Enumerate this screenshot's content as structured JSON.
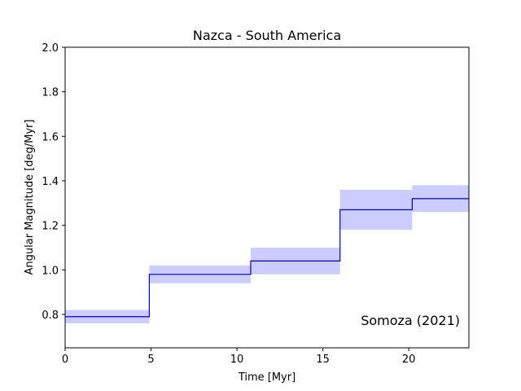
{
  "chart_data": {
    "type": "line",
    "step": true,
    "title": "Nazca - South America",
    "xlabel": "Time [Myr]",
    "ylabel": "Angular Magnitude [deg/Myr]",
    "annotation": "Somoza (2021)",
    "xlim": [
      0,
      23.5
    ],
    "ylim": [
      0.65,
      2.0
    ],
    "xticks": [
      0,
      5,
      10,
      15,
      20
    ],
    "yticks": [
      0.8,
      1.0,
      1.2,
      1.4,
      1.6,
      1.8,
      2.0
    ],
    "xtick_labels": [
      "0",
      "5",
      "10",
      "15",
      "20"
    ],
    "ytick_labels": [
      "0.8",
      "1.0",
      "1.2",
      "1.4",
      "1.6",
      "1.8",
      "2.0"
    ],
    "grid": false,
    "line_color": "#0000cc",
    "band_color": "#ccccff",
    "intervals": [
      {
        "start": 0.0,
        "end": 4.9,
        "value": 0.79,
        "lower": 0.76,
        "upper": 0.82
      },
      {
        "start": 4.9,
        "end": 10.8,
        "value": 0.98,
        "lower": 0.94,
        "upper": 1.02
      },
      {
        "start": 10.8,
        "end": 16.0,
        "value": 1.04,
        "lower": 0.98,
        "upper": 1.1
      },
      {
        "start": 16.0,
        "end": 20.2,
        "value": 1.27,
        "lower": 1.18,
        "upper": 1.36
      },
      {
        "start": 20.2,
        "end": 23.5,
        "value": 1.32,
        "lower": 1.26,
        "upper": 1.38
      }
    ]
  }
}
